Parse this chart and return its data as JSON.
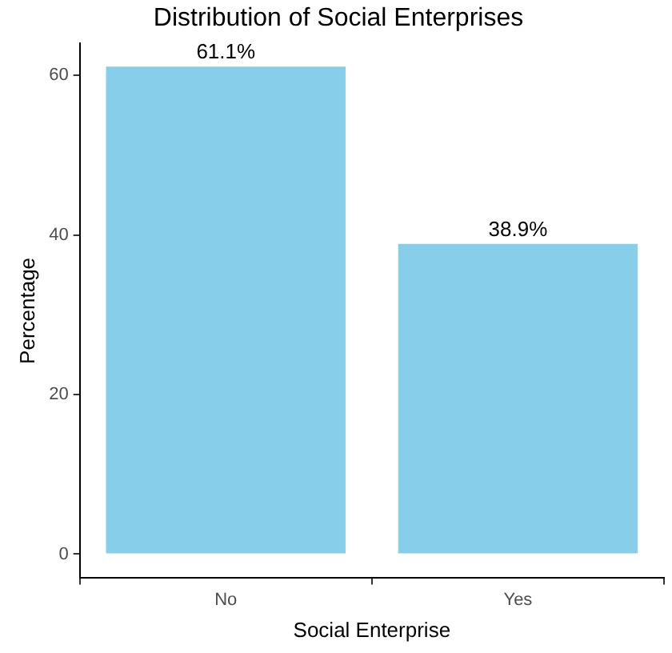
{
  "chart_data": {
    "type": "bar",
    "title": "Distribution of Social Enterprises",
    "xlabel": "Social Enterprise",
    "ylabel": "Percentage",
    "categories": [
      "No",
      "Yes"
    ],
    "values": [
      61.1,
      38.9
    ],
    "value_labels": [
      "61.1%",
      "38.9%"
    ],
    "color": "#87ceeb",
    "ylim": [
      -3,
      64
    ],
    "yticks": [
      0,
      20,
      40,
      60
    ],
    "grid": false,
    "legend": false
  }
}
